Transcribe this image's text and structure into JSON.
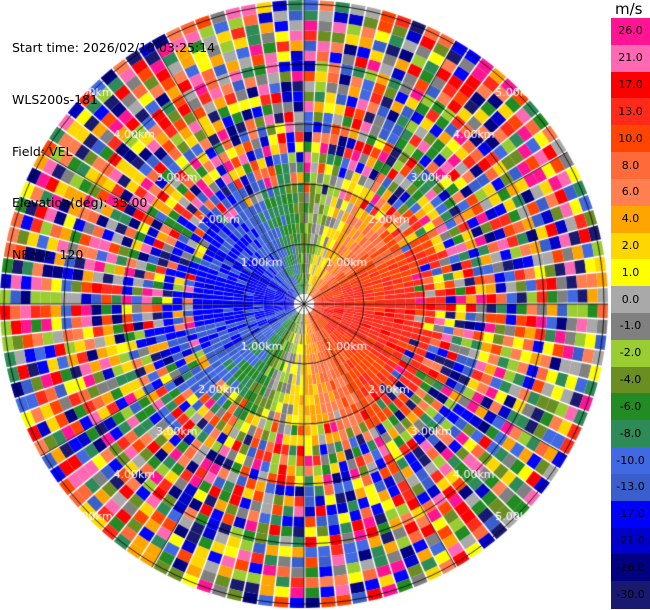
{
  "header": {
    "start_time": "Start time: 2026/02/10 03:25:14",
    "instrument": "WLS200s-181",
    "field": "Field: VEL",
    "elevation": "Elevation(deg): 35.00",
    "nrays": "NRays: 120"
  },
  "colorbar": {
    "unit": "m/s",
    "ticks": [
      "26.0",
      "21.0",
      "17.0",
      "13.0",
      "10.0",
      "8.0",
      "6.0",
      "4.0",
      "2.0",
      "1.0",
      "0.0",
      "-1.0",
      "-2.0",
      "-4.0",
      "-6.0",
      "-8.0",
      "-10.0",
      "-13.0",
      "-17.0",
      "-21.0",
      "-26.0",
      "-30.0"
    ],
    "colors": [
      "#ff1493",
      "#ff69b4",
      "#ff0000",
      "#ff2a1a",
      "#ff4500",
      "#ff6a3a",
      "#ff7f50",
      "#ffa500",
      "#ffd700",
      "#ffff00",
      "#a9a9a9",
      "#808080",
      "#9acd32",
      "#6b8e23",
      "#228b22",
      "#2e8b57",
      "#4169e1",
      "#3a5fcd",
      "#0000ff",
      "#0000cd",
      "#000080",
      "#191970"
    ]
  },
  "chart_data": {
    "type": "ppi",
    "field": "VEL",
    "units": "m/s",
    "nrays": 120,
    "elevation_deg": 35.0,
    "range_rings_km": [
      "1.00km",
      "2.00km",
      "3.00km",
      "4.00km",
      "5.00km"
    ],
    "color_scale_min": -30.0,
    "color_scale_max": 26.0
  }
}
